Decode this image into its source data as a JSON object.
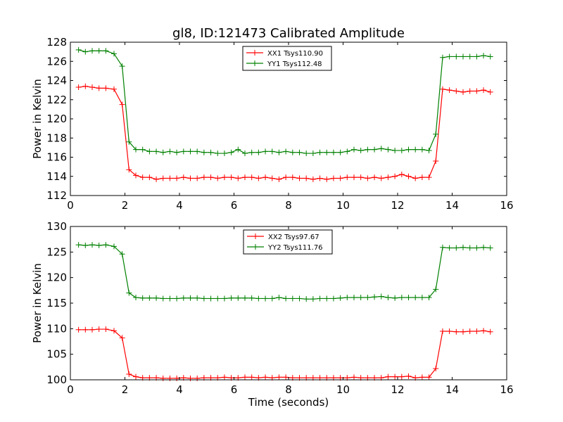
{
  "figure": {
    "title": "gl8, ID:121473 Calibrated Amplitude",
    "xlabel": "Time (seconds)"
  },
  "colors": {
    "xx": "#ff0000",
    "yy": "#008000",
    "axes": "#000000",
    "background": "#ffffff"
  },
  "chart_data": [
    {
      "type": "line",
      "title": "gl8, ID:121473 Calibrated Amplitude",
      "xlabel": "",
      "ylabel": "Power in Kelvin",
      "xlim": [
        0,
        16
      ],
      "ylim": [
        112,
        128
      ],
      "xticks": [
        0,
        2,
        4,
        6,
        8,
        10,
        12,
        14,
        16
      ],
      "yticks": [
        112,
        114,
        116,
        118,
        120,
        122,
        124,
        126,
        128
      ],
      "grid": false,
      "legend_position": "top-center",
      "marker": "plus",
      "x": [
        0.3,
        0.55,
        0.8,
        1.05,
        1.3,
        1.6,
        1.9,
        2.15,
        2.4,
        2.65,
        2.9,
        3.15,
        3.4,
        3.65,
        3.9,
        4.15,
        4.4,
        4.65,
        4.9,
        5.15,
        5.4,
        5.65,
        5.9,
        6.15,
        6.4,
        6.65,
        6.9,
        7.15,
        7.4,
        7.65,
        7.9,
        8.15,
        8.4,
        8.65,
        8.9,
        9.15,
        9.4,
        9.65,
        9.9,
        10.15,
        10.4,
        10.65,
        10.9,
        11.15,
        11.4,
        11.65,
        11.9,
        12.15,
        12.4,
        12.65,
        12.9,
        13.15,
        13.4,
        13.65,
        13.9,
        14.15,
        14.4,
        14.65,
        14.9,
        15.15,
        15.4
      ],
      "series": [
        {
          "name": "XX1 Tsys110.90",
          "color": "#ff0000",
          "values": [
            123.3,
            123.4,
            123.3,
            123.2,
            123.2,
            123.1,
            121.5,
            114.7,
            114.1,
            113.9,
            113.9,
            113.7,
            113.8,
            113.8,
            113.8,
            113.9,
            113.8,
            113.8,
            113.9,
            113.9,
            113.8,
            113.9,
            113.9,
            113.8,
            113.9,
            113.9,
            113.8,
            113.9,
            113.8,
            113.7,
            113.9,
            113.9,
            113.8,
            113.8,
            113.7,
            113.8,
            113.7,
            113.8,
            113.8,
            113.9,
            113.9,
            113.9,
            113.8,
            113.9,
            113.8,
            113.9,
            114.0,
            114.2,
            114.0,
            113.8,
            113.9,
            113.9,
            115.6,
            123.1,
            123.0,
            122.9,
            122.8,
            122.9,
            122.9,
            123.0,
            122.8
          ]
        },
        {
          "name": "YY1 Tsys112.48",
          "color": "#008000",
          "values": [
            127.2,
            127.0,
            127.1,
            127.1,
            127.1,
            126.8,
            125.5,
            117.6,
            116.8,
            116.8,
            116.6,
            116.6,
            116.5,
            116.6,
            116.5,
            116.6,
            116.6,
            116.6,
            116.5,
            116.5,
            116.4,
            116.4,
            116.5,
            116.8,
            116.4,
            116.5,
            116.5,
            116.6,
            116.6,
            116.5,
            116.6,
            116.5,
            116.5,
            116.4,
            116.4,
            116.5,
            116.5,
            116.5,
            116.5,
            116.6,
            116.8,
            116.7,
            116.8,
            116.8,
            116.9,
            116.8,
            116.7,
            116.7,
            116.8,
            116.8,
            116.8,
            116.7,
            118.4,
            126.4,
            126.5,
            126.5,
            126.5,
            126.5,
            126.5,
            126.6,
            126.5
          ]
        }
      ]
    },
    {
      "type": "line",
      "title": "",
      "xlabel": "Time (seconds)",
      "ylabel": "Power in Kelvin",
      "xlim": [
        0,
        16
      ],
      "ylim": [
        100,
        130
      ],
      "xticks": [
        0,
        2,
        4,
        6,
        8,
        10,
        12,
        14,
        16
      ],
      "yticks": [
        100,
        105,
        110,
        115,
        120,
        125,
        130
      ],
      "grid": false,
      "legend_position": "top-center",
      "marker": "plus",
      "x": [
        0.3,
        0.55,
        0.8,
        1.05,
        1.3,
        1.6,
        1.9,
        2.15,
        2.4,
        2.65,
        2.9,
        3.15,
        3.4,
        3.65,
        3.9,
        4.15,
        4.4,
        4.65,
        4.9,
        5.15,
        5.4,
        5.65,
        5.9,
        6.15,
        6.4,
        6.65,
        6.9,
        7.15,
        7.4,
        7.65,
        7.9,
        8.15,
        8.4,
        8.65,
        8.9,
        9.15,
        9.4,
        9.65,
        9.9,
        10.15,
        10.4,
        10.65,
        10.9,
        11.15,
        11.4,
        11.65,
        11.9,
        12.15,
        12.4,
        12.65,
        12.9,
        13.15,
        13.4,
        13.65,
        13.9,
        14.15,
        14.4,
        14.65,
        14.9,
        15.15,
        15.4
      ],
      "series": [
        {
          "name": "XX2 Tsys97.67",
          "color": "#ff0000",
          "values": [
            109.8,
            109.8,
            109.8,
            109.9,
            109.9,
            109.6,
            108.2,
            101.1,
            100.6,
            100.4,
            100.4,
            100.4,
            100.3,
            100.3,
            100.3,
            100.4,
            100.3,
            100.3,
            100.4,
            100.4,
            100.4,
            100.5,
            100.4,
            100.4,
            100.5,
            100.5,
            100.4,
            100.5,
            100.4,
            100.5,
            100.5,
            100.4,
            100.4,
            100.4,
            100.4,
            100.4,
            100.4,
            100.4,
            100.4,
            100.4,
            100.5,
            100.4,
            100.4,
            100.4,
            100.4,
            100.6,
            100.6,
            100.6,
            100.7,
            100.4,
            100.5,
            100.5,
            102.2,
            109.5,
            109.5,
            109.4,
            109.4,
            109.5,
            109.5,
            109.6,
            109.4
          ]
        },
        {
          "name": "YY2 Tsys111.76",
          "color": "#008000",
          "values": [
            126.4,
            126.3,
            126.4,
            126.3,
            126.4,
            126.1,
            124.6,
            117.0,
            116.1,
            116.0,
            116.0,
            116.0,
            115.9,
            115.9,
            115.9,
            116.0,
            116.0,
            116.0,
            115.9,
            115.9,
            115.9,
            115.9,
            116.0,
            116.0,
            116.0,
            116.0,
            115.9,
            115.9,
            115.9,
            116.1,
            115.9,
            115.9,
            115.9,
            115.8,
            115.8,
            115.9,
            115.9,
            115.9,
            116.0,
            116.1,
            116.1,
            116.1,
            116.1,
            116.2,
            116.3,
            116.1,
            116.0,
            116.1,
            116.1,
            116.1,
            116.1,
            116.1,
            117.7,
            125.9,
            125.8,
            125.8,
            125.9,
            125.8,
            125.8,
            125.9,
            125.8
          ]
        }
      ]
    }
  ]
}
